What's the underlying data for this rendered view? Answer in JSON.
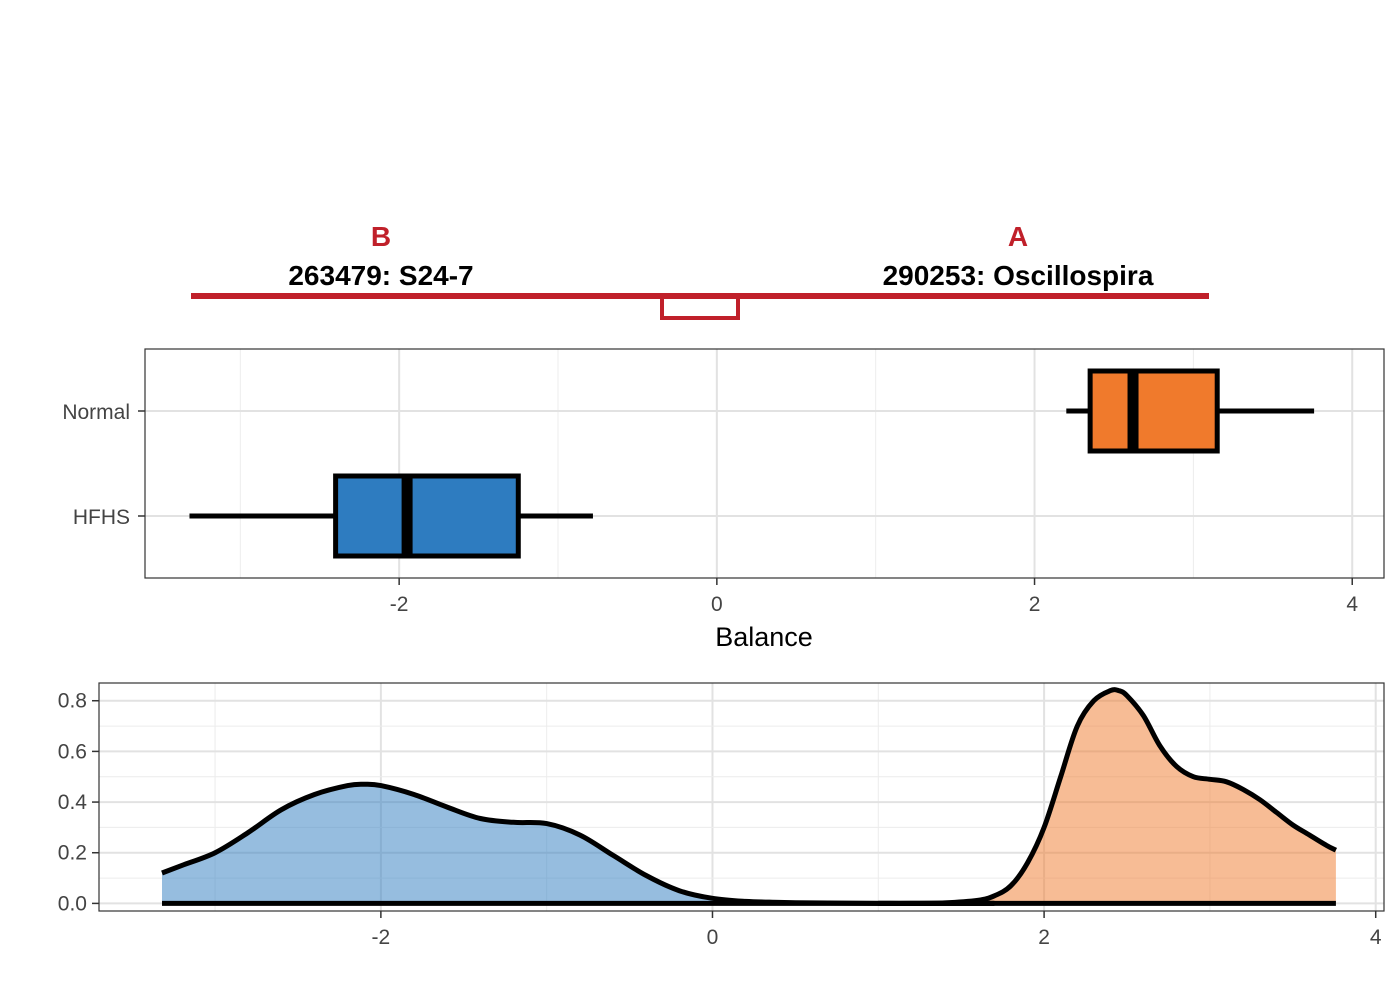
{
  "balance_header": {
    "left_group": "B",
    "right_group": "A",
    "left_taxon": "263479: S24-7",
    "right_taxon": "290253: Oscillospira",
    "accent_color": "#c0202a"
  },
  "chart_data": [
    {
      "type": "boxplot",
      "title": "",
      "xlabel": "Balance",
      "ylabel": "",
      "xlim": [
        -3.6,
        4.2
      ],
      "x_ticks": [
        "-2",
        "0",
        "2",
        "4"
      ],
      "x_tick_values": [
        -2,
        0,
        2,
        4
      ],
      "grid": true,
      "categories": [
        "Normal",
        "HFHS"
      ],
      "series": [
        {
          "category": "Normal",
          "whisker_low": 2.2,
          "q1": 2.35,
          "median": 2.62,
          "q3": 3.15,
          "whisker_high": 3.76,
          "color": "#f07a2c"
        },
        {
          "category": "HFHS",
          "whisker_low": -3.32,
          "q1": -2.4,
          "median": -1.95,
          "q3": -1.25,
          "whisker_high": -0.78,
          "color": "#2e7cc0"
        }
      ]
    },
    {
      "type": "area",
      "title": "",
      "xlabel": "",
      "ylabel": "",
      "xlim": [
        -3.7,
        4.05
      ],
      "ylim": [
        -0.03,
        0.87
      ],
      "x_ticks": [
        "-2",
        "0",
        "2",
        "4"
      ],
      "x_tick_values": [
        -2,
        0,
        2,
        4
      ],
      "y_ticks": [
        "0.0",
        "0.2",
        "0.4",
        "0.6",
        "0.8"
      ],
      "y_tick_values": [
        0,
        0.2,
        0.4,
        0.6,
        0.8
      ],
      "grid": true,
      "series": [
        {
          "group": "HFHS",
          "color": "#2e7cc0",
          "x": [
            -3.32,
            -3.2,
            -3.0,
            -2.8,
            -2.6,
            -2.4,
            -2.2,
            -2.1,
            -2.0,
            -1.8,
            -1.6,
            -1.4,
            -1.2,
            -1.0,
            -0.8,
            -0.6,
            -0.4,
            -0.2,
            0.0,
            0.2,
            0.4,
            0.6,
            0.8,
            1.0,
            1.2,
            1.4,
            1.6,
            1.7
          ],
          "y": [
            0.12,
            0.15,
            0.2,
            0.28,
            0.37,
            0.43,
            0.465,
            0.47,
            0.465,
            0.43,
            0.38,
            0.335,
            0.32,
            0.315,
            0.27,
            0.19,
            0.11,
            0.05,
            0.02,
            0.008,
            0.004,
            0.002,
            0.001,
            0.0,
            0.0,
            0.0,
            0.0,
            0.0
          ]
        },
        {
          "group": "Normal",
          "color": "#f07a2c",
          "x": [
            1.0,
            1.2,
            1.4,
            1.6,
            1.7,
            1.8,
            1.9,
            2.0,
            2.1,
            2.2,
            2.3,
            2.4,
            2.45,
            2.5,
            2.6,
            2.7,
            2.8,
            2.9,
            3.0,
            3.1,
            3.2,
            3.3,
            3.4,
            3.5,
            3.6,
            3.7,
            3.76
          ],
          "y": [
            0.0,
            0.0,
            0.002,
            0.012,
            0.03,
            0.07,
            0.16,
            0.3,
            0.5,
            0.7,
            0.8,
            0.84,
            0.84,
            0.82,
            0.74,
            0.62,
            0.54,
            0.5,
            0.49,
            0.48,
            0.45,
            0.41,
            0.36,
            0.31,
            0.27,
            0.23,
            0.21
          ]
        }
      ]
    }
  ]
}
